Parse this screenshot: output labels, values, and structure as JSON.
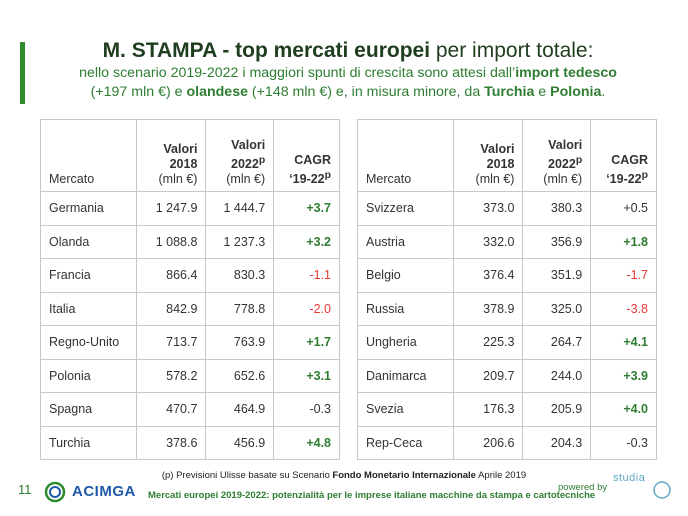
{
  "title": {
    "prefix": "M. STAMPA - top mercati europei",
    "suffix": " per import totale:"
  },
  "subtitle": {
    "line1_a": "nello scenario 2019-2022 i maggiori spunti di crescita sono attesi dall’",
    "line1_b": "import tedesco",
    "line2_a": "(+197 mln €) e ",
    "line2_b": "olandese",
    "line2_c": " (+148 mln €) e, in misura minore, da ",
    "line2_d": "Turchia",
    "line2_e": " e ",
    "line2_f": "Polonia",
    "line2_g": "."
  },
  "table_headers": {
    "market": "Mercato",
    "v2018_a": "Valori",
    "v2018_b": "2018",
    "v2018_unit": "(mln €)",
    "v2022_a": "Valori",
    "v2022_b": "2022",
    "v2022_sup": "p",
    "v2022_unit": "(mln €)",
    "cagr_a": "CAGR",
    "cagr_b": "‘19-22",
    "cagr_sup": "p"
  },
  "left_rows": [
    {
      "market": "Germania",
      "v2018": "1 247.9",
      "v2022": "1 444.7",
      "cagr": "+3.7"
    },
    {
      "market": "Olanda",
      "v2018": "1 088.8",
      "v2022": "1 237.3",
      "cagr": "+3.2"
    },
    {
      "market": "Francia",
      "v2018": "866.4",
      "v2022": "830.3",
      "cagr": "-1.1"
    },
    {
      "market": "Italia",
      "v2018": "842.9",
      "v2022": "778.8",
      "cagr": "-2.0"
    },
    {
      "market": "Regno-Unito",
      "v2018": "713.7",
      "v2022": "763.9",
      "cagr": "+1.7"
    },
    {
      "market": "Polonia",
      "v2018": "578.2",
      "v2022": "652.6",
      "cagr": "+3.1"
    },
    {
      "market": "Spagna",
      "v2018": "470.7",
      "v2022": "464.9",
      "cagr": "-0.3"
    },
    {
      "market": "Turchia",
      "v2018": "378.6",
      "v2022": "456.9",
      "cagr": "+4.8"
    }
  ],
  "right_rows": [
    {
      "market": "Svizzera",
      "v2018": "373.0",
      "v2022": "380.3",
      "cagr": "+0.5"
    },
    {
      "market": "Austria",
      "v2018": "332.0",
      "v2022": "356.9",
      "cagr": "+1.8"
    },
    {
      "market": "Belgio",
      "v2018": "376.4",
      "v2022": "351.9",
      "cagr": "-1.7"
    },
    {
      "market": "Russia",
      "v2018": "378.9",
      "v2022": "325.0",
      "cagr": "-3.8"
    },
    {
      "market": "Ungheria",
      "v2018": "225.3",
      "v2022": "264.7",
      "cagr": "+4.1"
    },
    {
      "market": "Danimarca",
      "v2018": "209.7",
      "v2022": "244.0",
      "cagr": "+3.9"
    },
    {
      "market": "Svezia",
      "v2018": "176.3",
      "v2022": "205.9",
      "cagr": "+4.0"
    },
    {
      "market": "Rep-Ceca",
      "v2018": "206.6",
      "v2022": "204.3",
      "cagr": "-0.3"
    }
  ],
  "footnote": {
    "a": "(p) Previsioni Ulisse basate su Scenario ",
    "b": "Fondo Monetario  Internazionale",
    "c": " Aprile 2019"
  },
  "footer": {
    "page_number": "11",
    "logo_text": "ACIMGA",
    "caption": "Mercati europei 2019-2022: potenzialità per le imprese italiane macchine da stampa e cartotecniche",
    "powered": "powered by",
    "partner_logo": "studia"
  },
  "colors": {
    "positive": "#2e7d32",
    "negative": "#e53935",
    "neutral": "#333333",
    "accent": "#2e8b2e"
  }
}
